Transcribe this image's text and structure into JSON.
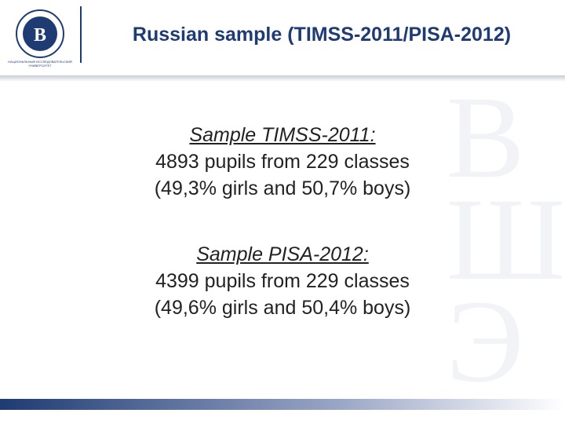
{
  "header": {
    "title": "Russian sample (TIMSS-2011/PISA-2012)",
    "logo_text": "НАЦИОНАЛЬНЫЙ ИССЛЕДОВАТЕЛЬСКИЙ УНИВЕРСИТЕТ"
  },
  "sections": [
    {
      "heading": "Sample TIMSS-2011:",
      "lines": [
        "4893 pupils from 229 classes",
        "(49,3% girls and 50,7% boys)"
      ]
    },
    {
      "heading": "Sample PISA-2012:",
      "lines": [
        "4399 pupils from 229 classes",
        "(49,6% girls and 50,4% boys)"
      ]
    }
  ]
}
